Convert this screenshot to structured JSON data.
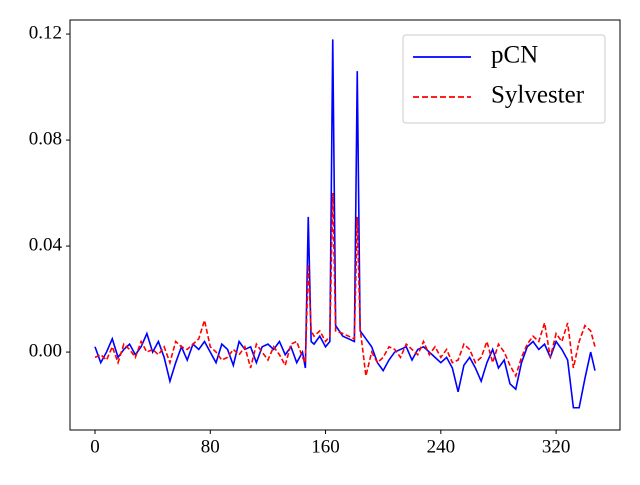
{
  "chart_data": {
    "type": "line",
    "x": [
      0,
      4,
      8,
      12,
      16,
      20,
      24,
      28,
      32,
      36,
      40,
      44,
      48,
      52,
      56,
      60,
      64,
      68,
      72,
      76,
      80,
      84,
      88,
      92,
      96,
      100,
      104,
      108,
      112,
      116,
      120,
      124,
      128,
      132,
      136,
      140,
      144,
      146,
      148,
      150,
      152,
      156,
      160,
      163,
      165,
      167,
      172,
      176,
      180,
      182,
      184,
      188,
      192,
      196,
      200,
      204,
      208,
      212,
      216,
      220,
      224,
      228,
      232,
      236,
      240,
      244,
      248,
      252,
      256,
      260,
      264,
      268,
      272,
      276,
      280,
      284,
      288,
      292,
      296,
      300,
      304,
      308,
      312,
      316,
      320,
      324,
      328,
      332,
      336,
      340,
      344,
      347
    ],
    "series": [
      {
        "name": "pCN",
        "color": "#0000ff",
        "dash": "solid",
        "values": [
          0.002,
          -0.004,
          0.0,
          0.005,
          -0.002,
          0.001,
          0.003,
          -0.001,
          0.002,
          0.007,
          0.0,
          0.004,
          -0.002,
          -0.011,
          -0.004,
          0.002,
          -0.003,
          0.003,
          0.001,
          0.004,
          0.0,
          -0.004,
          0.003,
          0.001,
          -0.005,
          0.004,
          0.001,
          0.002,
          -0.004,
          0.002,
          0.003,
          0.001,
          0.004,
          -0.001,
          0.002,
          -0.004,
          0.0,
          -0.006,
          0.051,
          0.004,
          0.003,
          0.006,
          0.002,
          0.004,
          0.118,
          0.01,
          0.006,
          0.005,
          0.004,
          0.106,
          0.008,
          0.005,
          0.002,
          -0.004,
          -0.007,
          -0.003,
          0.0,
          0.001,
          0.002,
          -0.003,
          0.001,
          0.002,
          0.0,
          -0.002,
          -0.004,
          -0.002,
          -0.006,
          -0.015,
          -0.005,
          -0.002,
          -0.006,
          -0.011,
          -0.004,
          0.001,
          -0.006,
          -0.003,
          -0.012,
          -0.014,
          -0.004,
          0.002,
          0.004,
          0.001,
          0.003,
          -0.002,
          0.004,
          0.001,
          -0.003,
          -0.021,
          -0.021,
          -0.01,
          0.0,
          -0.007
        ]
      },
      {
        "name": "Sylvester",
        "color": "#ff0000",
        "dash": "dashed",
        "values": [
          -0.002,
          -0.001,
          -0.003,
          0.002,
          -0.004,
          0.003,
          0.001,
          -0.002,
          0.004,
          0.0,
          0.001,
          -0.001,
          0.002,
          -0.004,
          0.004,
          0.002,
          0.001,
          0.003,
          0.005,
          0.012,
          0.002,
          0.0,
          -0.003,
          -0.002,
          0.001,
          -0.001,
          0.002,
          -0.006,
          0.003,
          0.0,
          -0.003,
          0.002,
          -0.001,
          -0.005,
          0.003,
          0.004,
          -0.002,
          -0.004,
          0.033,
          0.008,
          0.006,
          0.008,
          0.004,
          0.006,
          0.06,
          0.008,
          0.007,
          0.006,
          0.005,
          0.051,
          0.009,
          -0.009,
          0.0,
          -0.004,
          -0.002,
          0.002,
          0.001,
          -0.002,
          0.003,
          0.001,
          -0.001,
          0.004,
          -0.001,
          0.002,
          -0.002,
          0.001,
          -0.004,
          -0.003,
          0.003,
          0.001,
          -0.004,
          -0.002,
          0.004,
          -0.004,
          0.003,
          0.0,
          -0.005,
          -0.009,
          -0.002,
          0.003,
          0.006,
          0.004,
          0.011,
          -0.002,
          0.007,
          0.004,
          0.011,
          -0.006,
          0.004,
          0.01,
          0.008,
          0.002
        ]
      }
    ],
    "xlim": [
      -17.35,
      364.35
    ],
    "ylim": [
      -0.0294,
      0.1253
    ],
    "xticks": [
      0,
      80,
      160,
      240,
      320
    ],
    "yticks": [
      {
        "value": 0,
        "label": "0.00"
      },
      0.04,
      0.08,
      0.12
    ],
    "legend": "upper right"
  }
}
